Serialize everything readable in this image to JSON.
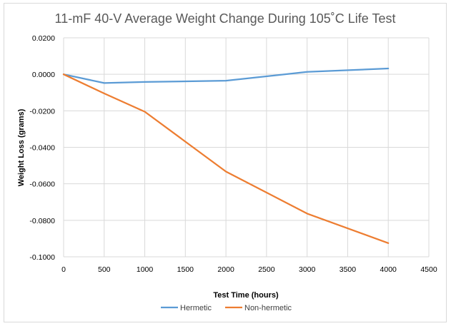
{
  "chart_data": {
    "type": "line",
    "title": "11-mF 40-V Average Weight Change During 105˚C Life Test",
    "xlabel": "Test Time (hours)",
    "ylabel": "Weight Loss (grams)",
    "xlim": [
      0,
      4500
    ],
    "ylim": [
      -0.1,
      0.02
    ],
    "x_ticks": [
      "0",
      "500",
      "1000",
      "1500",
      "2000",
      "2500",
      "3000",
      "3500",
      "4000",
      "4500"
    ],
    "y_ticks": [
      "0.0200",
      "0.0000",
      "-0.0200",
      "-0.0400",
      "-0.0600",
      "-0.0800",
      "-0.1000"
    ],
    "grid": true,
    "legend_position": "bottom",
    "series": [
      {
        "name": "Hermetic",
        "color": "#5b9bd5",
        "x": [
          0,
          500,
          1000,
          2000,
          3000,
          4000
        ],
        "y": [
          0.0,
          -0.0048,
          -0.0042,
          -0.0035,
          0.0013,
          0.0032
        ]
      },
      {
        "name": "Non-hermetic",
        "color": "#ed7d31",
        "x": [
          0,
          500,
          1000,
          2000,
          3000,
          4000
        ],
        "y": [
          0.0,
          -0.0105,
          -0.0205,
          -0.0533,
          -0.0763,
          -0.0925
        ]
      }
    ]
  }
}
